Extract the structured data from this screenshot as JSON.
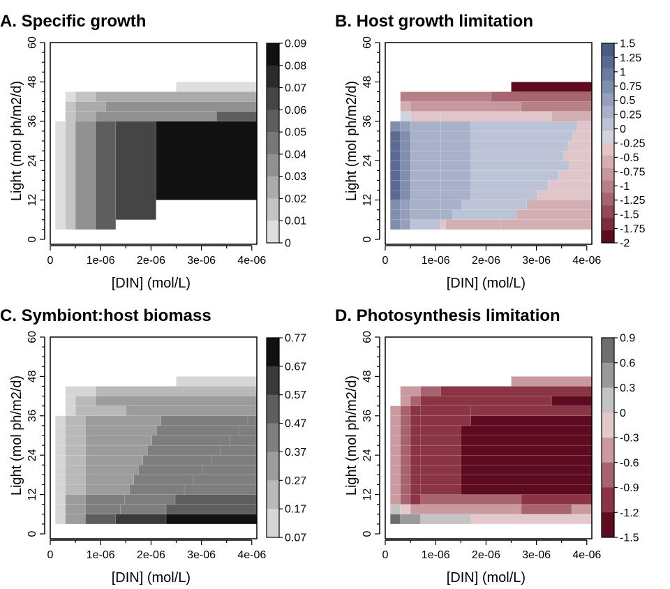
{
  "chart_data": [
    {
      "type": "heatmap",
      "title": "A. Specific growth",
      "xlabel": "[DIN] (mol/L)",
      "ylabel": "Light (mol ph/m2/d)",
      "xticks": [
        "0",
        "1e-06",
        "2e-06",
        "3e-06",
        "4e-06"
      ],
      "yticks": [
        "0",
        "12",
        "24",
        "36",
        "48",
        "60"
      ],
      "xlim": [
        0,
        4.1e-06
      ],
      "ylim": [
        0,
        60
      ],
      "colorbar": {
        "ticks": [
          "0.09",
          "0.08",
          "0.07",
          "0.06",
          "0.05",
          "0.04",
          "0.03",
          "0.02",
          "0.01",
          "0"
        ],
        "colors": [
          "#111111",
          "#2b2b2b",
          "#454545",
          "#5e5e5e",
          "#787878",
          "#919191",
          "#ababab",
          "#c4c4c4",
          "#dedede"
        ]
      },
      "values_note": "level indices into colorbar.colors (0 = darkest)",
      "regions": [
        {
          "light": [
            45,
            48
          ],
          "din": [
            2.5e-06,
            4.1e-06
          ],
          "level": 8
        },
        {
          "light": [
            42,
            45
          ],
          "din": [
            3e-07,
            5e-07
          ],
          "level": 8
        },
        {
          "light": [
            42,
            45
          ],
          "din": [
            5e-07,
            9e-07
          ],
          "level": 7
        },
        {
          "light": [
            42,
            45
          ],
          "din": [
            9e-07,
            4.1e-06
          ],
          "level": 6
        },
        {
          "light": [
            39,
            42
          ],
          "din": [
            3e-07,
            5e-07
          ],
          "level": 7
        },
        {
          "light": [
            39,
            42
          ],
          "din": [
            5e-07,
            1.1e-06
          ],
          "level": 6
        },
        {
          "light": [
            39,
            42
          ],
          "din": [
            1.1e-06,
            4.1e-06
          ],
          "level": 5
        },
        {
          "light": [
            36,
            39
          ],
          "din": [
            3e-07,
            5e-07
          ],
          "level": 7
        },
        {
          "light": [
            36,
            39
          ],
          "din": [
            5e-07,
            9e-07
          ],
          "level": 6
        },
        {
          "light": [
            36,
            39
          ],
          "din": [
            9e-07,
            3.3e-06
          ],
          "level": 5
        },
        {
          "light": [
            36,
            39
          ],
          "din": [
            3.3e-06,
            4.1e-06
          ],
          "level": 3
        },
        {
          "light": [
            3,
            36
          ],
          "din": [
            1e-07,
            3e-07
          ],
          "level": 8
        },
        {
          "light": [
            3,
            36
          ],
          "din": [
            3e-07,
            5e-07
          ],
          "level": 7
        },
        {
          "light": [
            3,
            36
          ],
          "din": [
            5e-07,
            9e-07
          ],
          "level": 5
        },
        {
          "light": [
            3,
            36
          ],
          "din": [
            9e-07,
            1.3e-06
          ],
          "level": 3
        },
        {
          "light": [
            6,
            36
          ],
          "din": [
            1.3e-06,
            2.1e-06
          ],
          "level": 2
        },
        {
          "light": [
            12,
            36
          ],
          "din": [
            2.1e-06,
            4.1e-06
          ],
          "level": 0
        }
      ]
    },
    {
      "type": "heatmap",
      "title": "B. Host growth limitation",
      "xlabel": "[DIN] (mol/L)",
      "ylabel": "Light (mol ph/m2/d)",
      "xticks": [
        "0",
        "1e-06",
        "2e-06",
        "3e-06",
        "4e-06"
      ],
      "yticks": [
        "0",
        "12",
        "24",
        "36",
        "48",
        "60"
      ],
      "xlim": [
        0,
        4.1e-06
      ],
      "ylim": [
        0,
        60
      ],
      "colorbar": {
        "ticks": [
          "1.5",
          "1.25",
          "1",
          "0.75",
          "0.5",
          "0.25",
          "0",
          "-0.25",
          "-0.5",
          "-0.75",
          "-1",
          "-1.25",
          "-1.5",
          "-1.75",
          "-2"
        ],
        "colors": [
          "#4a5a85",
          "#5b6a92",
          "#6d7b9f",
          "#808dad",
          "#949fbb",
          "#a8b1c9",
          "#bcc3d6",
          "#d0d4e1",
          "#e0c6ca",
          "#d3aeb3",
          "#c6979d",
          "#b77f86",
          "#a6656f",
          "#934858",
          "#7e2a3f",
          "#5e0a20"
        ]
      },
      "values_note": "level indices into colorbar.colors (0 = top of bar)",
      "regions": []
    },
    {
      "type": "heatmap",
      "title": "C. Symbiont:host biomass",
      "xlabel": "[DIN] (mol/L)",
      "ylabel": "Light (mol ph/m2/d)",
      "xticks": [
        "0",
        "1e-06",
        "2e-06",
        "3e-06",
        "4e-06"
      ],
      "yticks": [
        "0",
        "12",
        "24",
        "36",
        "48",
        "60"
      ],
      "xlim": [
        0,
        4.1e-06
      ],
      "ylim": [
        0,
        60
      ],
      "colorbar": {
        "ticks": [
          "0.77",
          "0.67",
          "0.57",
          "0.47",
          "0.37",
          "0.27",
          "0.17",
          "0.07"
        ],
        "colors": [
          "#111111",
          "#3a3a3a",
          "#5e5e5e",
          "#7e7e7e",
          "#9c9c9c",
          "#b9b9b9",
          "#d6d6d6"
        ]
      },
      "values_note": "level indices into colorbar.colors (0 = darkest)",
      "regions": []
    },
    {
      "type": "heatmap",
      "title": "D. Photosynthesis limitation",
      "xlabel": "[DIN] (mol/L)",
      "ylabel": "Light (mol ph/m2/d)",
      "xticks": [
        "0",
        "1e-06",
        "2e-06",
        "3e-06",
        "4e-06"
      ],
      "yticks": [
        "0",
        "12",
        "24",
        "36",
        "48",
        "60"
      ],
      "xlim": [
        0,
        4.1e-06
      ],
      "ylim": [
        0,
        60
      ],
      "colorbar": {
        "ticks": [
          "0.9",
          "0.6",
          "0.3",
          "0",
          "-0.3",
          "-0.6",
          "-0.9",
          "-1.2",
          "-1.5"
        ],
        "colors": [
          "#6e6e6e",
          "#9a9a9a",
          "#c3c3c3",
          "#e3c9cc",
          "#c99ba1",
          "#a8646e",
          "#8a3445",
          "#5e0a20"
        ]
      },
      "values_note": "level indices into colorbar.colors (0 = top of bar)",
      "regions": []
    }
  ]
}
